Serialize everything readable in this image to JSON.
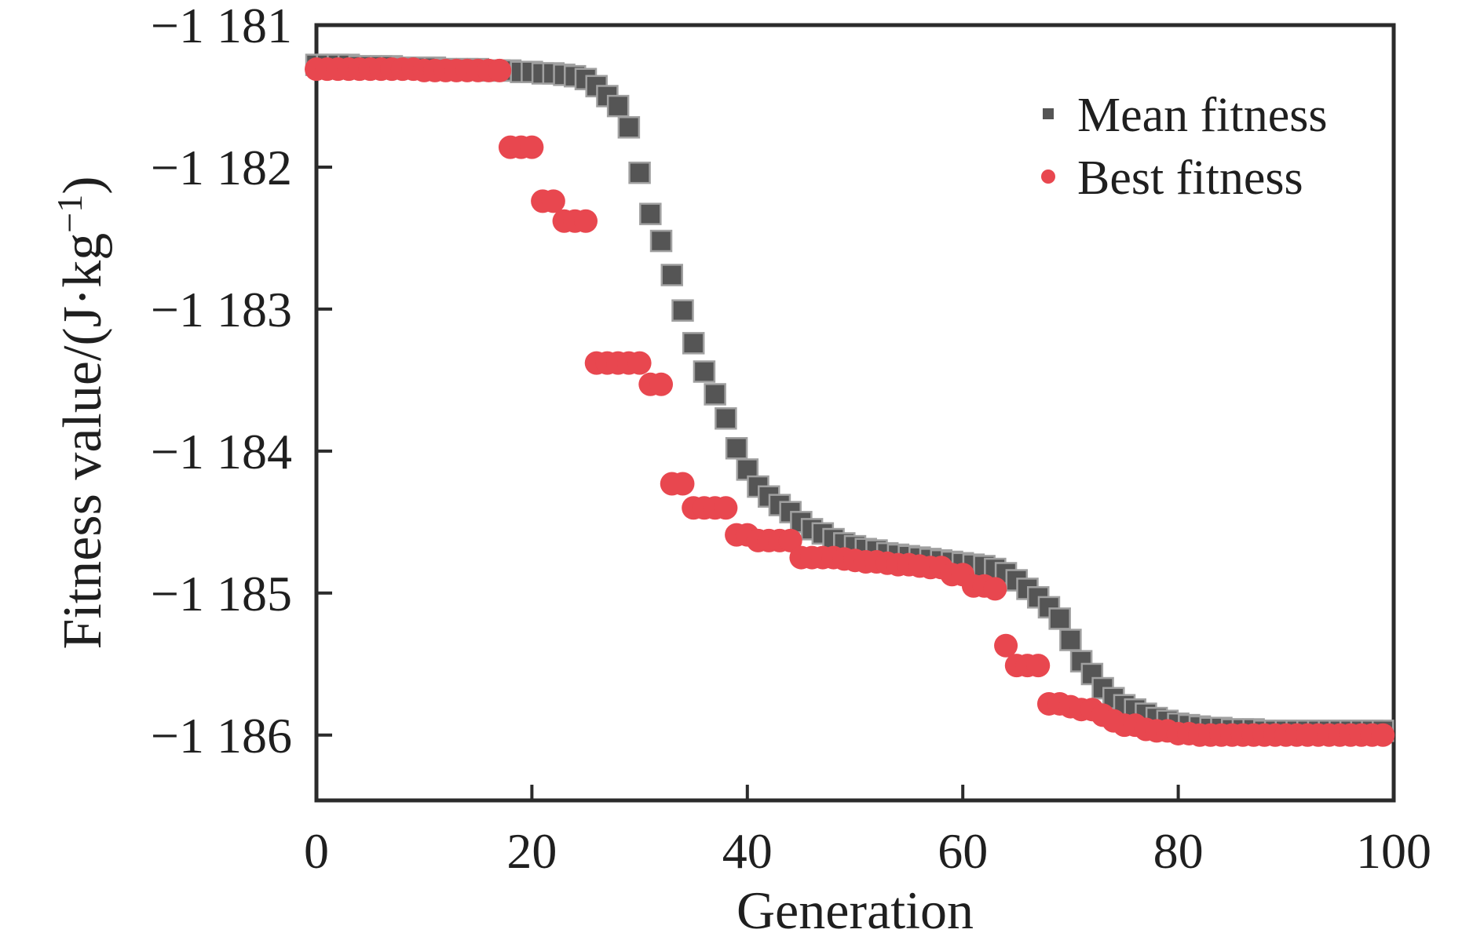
{
  "page": {
    "background": "#ffffff"
  },
  "chart_data": {
    "type": "scatter",
    "title": "",
    "xlabel": "Generation",
    "ylabel": "Fitness value/(J·kg⁻¹)",
    "ylabel_parts": {
      "main": "Fitness value/(J·kg",
      "sup": "−1",
      "close": ")"
    },
    "x_range": [
      0,
      100
    ],
    "y_range": [
      -1186.46,
      -1181
    ],
    "grid": false,
    "legend_position": "top-right-inside",
    "colors": {
      "axis": "#2b2b2b",
      "text": "#1f1f1f"
    },
    "x_ticks": [
      {
        "value": 0,
        "label": "0"
      },
      {
        "value": 20,
        "label": "20"
      },
      {
        "value": 40,
        "label": "40"
      },
      {
        "value": 60,
        "label": "60"
      },
      {
        "value": 80,
        "label": "80"
      },
      {
        "value": 100,
        "label": "100"
      }
    ],
    "y_ticks": [
      {
        "value": -1181,
        "label": "−1 181"
      },
      {
        "value": -1182,
        "label": "−1 182"
      },
      {
        "value": -1183,
        "label": "−1 183"
      },
      {
        "value": -1184,
        "label": "−1 184"
      },
      {
        "value": -1185,
        "label": "−1 185"
      },
      {
        "value": -1186,
        "label": "−1 186"
      }
    ],
    "x": [
      0,
      1,
      2,
      3,
      4,
      5,
      6,
      7,
      8,
      9,
      10,
      11,
      12,
      13,
      14,
      15,
      16,
      17,
      18,
      19,
      20,
      21,
      22,
      23,
      24,
      25,
      26,
      27,
      28,
      29,
      30,
      31,
      32,
      33,
      34,
      35,
      36,
      37,
      38,
      39,
      40,
      41,
      42,
      43,
      44,
      45,
      46,
      47,
      48,
      49,
      50,
      51,
      52,
      53,
      54,
      55,
      56,
      57,
      58,
      59,
      60,
      61,
      62,
      63,
      64,
      65,
      66,
      67,
      68,
      69,
      70,
      71,
      72,
      73,
      74,
      75,
      76,
      77,
      78,
      79,
      80,
      81,
      82,
      83,
      84,
      85,
      86,
      87,
      88,
      89,
      90,
      91,
      92,
      93,
      94,
      95,
      96,
      97,
      98,
      99
    ],
    "series": [
      {
        "name": "Mean fitness",
        "marker": "square",
        "color": "#555555",
        "marker_edge": "#a0a0a0",
        "values": [
          -1181.28,
          -1181.28,
          -1181.28,
          -1181.28,
          -1181.29,
          -1181.29,
          -1181.29,
          -1181.29,
          -1181.3,
          -1181.3,
          -1181.3,
          -1181.3,
          -1181.31,
          -1181.31,
          -1181.31,
          -1181.31,
          -1181.32,
          -1181.32,
          -1181.32,
          -1181.33,
          -1181.33,
          -1181.34,
          -1181.34,
          -1181.35,
          -1181.36,
          -1181.38,
          -1181.43,
          -1181.5,
          -1181.57,
          -1181.72,
          -1182.04,
          -1182.33,
          -1182.52,
          -1182.76,
          -1183.01,
          -1183.24,
          -1183.44,
          -1183.6,
          -1183.77,
          -1183.98,
          -1184.13,
          -1184.25,
          -1184.32,
          -1184.38,
          -1184.43,
          -1184.5,
          -1184.55,
          -1184.58,
          -1184.62,
          -1184.65,
          -1184.67,
          -1184.69,
          -1184.7,
          -1184.72,
          -1184.73,
          -1184.74,
          -1184.75,
          -1184.76,
          -1184.77,
          -1184.78,
          -1184.79,
          -1184.8,
          -1184.81,
          -1184.83,
          -1184.86,
          -1184.91,
          -1184.97,
          -1185.03,
          -1185.1,
          -1185.18,
          -1185.33,
          -1185.48,
          -1185.57,
          -1185.67,
          -1185.74,
          -1185.79,
          -1185.82,
          -1185.85,
          -1185.88,
          -1185.9,
          -1185.92,
          -1185.93,
          -1185.94,
          -1185.95,
          -1185.95,
          -1185.96,
          -1185.96,
          -1185.96,
          -1185.97,
          -1185.97,
          -1185.97,
          -1185.97,
          -1185.97,
          -1185.97,
          -1185.97,
          -1185.97,
          -1185.97,
          -1185.97,
          -1185.97,
          -1185.97
        ]
      },
      {
        "name": "Best fitness",
        "marker": "circle",
        "color": "#e8474f",
        "values": [
          -1181.31,
          -1181.31,
          -1181.31,
          -1181.31,
          -1181.31,
          -1181.31,
          -1181.31,
          -1181.31,
          -1181.31,
          -1181.31,
          -1181.32,
          -1181.32,
          -1181.32,
          -1181.32,
          -1181.32,
          -1181.32,
          -1181.32,
          -1181.32,
          -1181.86,
          -1181.86,
          -1181.86,
          -1182.24,
          -1182.24,
          -1182.38,
          -1182.38,
          -1182.38,
          -1183.38,
          -1183.38,
          -1183.38,
          -1183.38,
          -1183.38,
          -1183.53,
          -1183.53,
          -1184.23,
          -1184.23,
          -1184.4,
          -1184.4,
          -1184.4,
          -1184.4,
          -1184.59,
          -1184.59,
          -1184.63,
          -1184.63,
          -1184.63,
          -1184.63,
          -1184.75,
          -1184.75,
          -1184.75,
          -1184.75,
          -1184.76,
          -1184.77,
          -1184.78,
          -1184.78,
          -1184.79,
          -1184.8,
          -1184.8,
          -1184.81,
          -1184.82,
          -1184.82,
          -1184.87,
          -1184.87,
          -1184.95,
          -1184.95,
          -1184.97,
          -1185.37,
          -1185.51,
          -1185.51,
          -1185.51,
          -1185.78,
          -1185.78,
          -1185.8,
          -1185.82,
          -1185.82,
          -1185.86,
          -1185.9,
          -1185.93,
          -1185.93,
          -1185.96,
          -1185.97,
          -1185.97,
          -1185.99,
          -1185.99,
          -1186.0,
          -1186.0,
          -1186.0,
          -1186.0,
          -1186.0,
          -1186.0,
          -1186.0,
          -1186.0,
          -1186.0,
          -1186.0,
          -1186.0,
          -1186.0,
          -1186.0,
          -1186.0,
          -1186.0,
          -1186.0,
          -1186.0,
          -1186.0
        ]
      }
    ]
  }
}
